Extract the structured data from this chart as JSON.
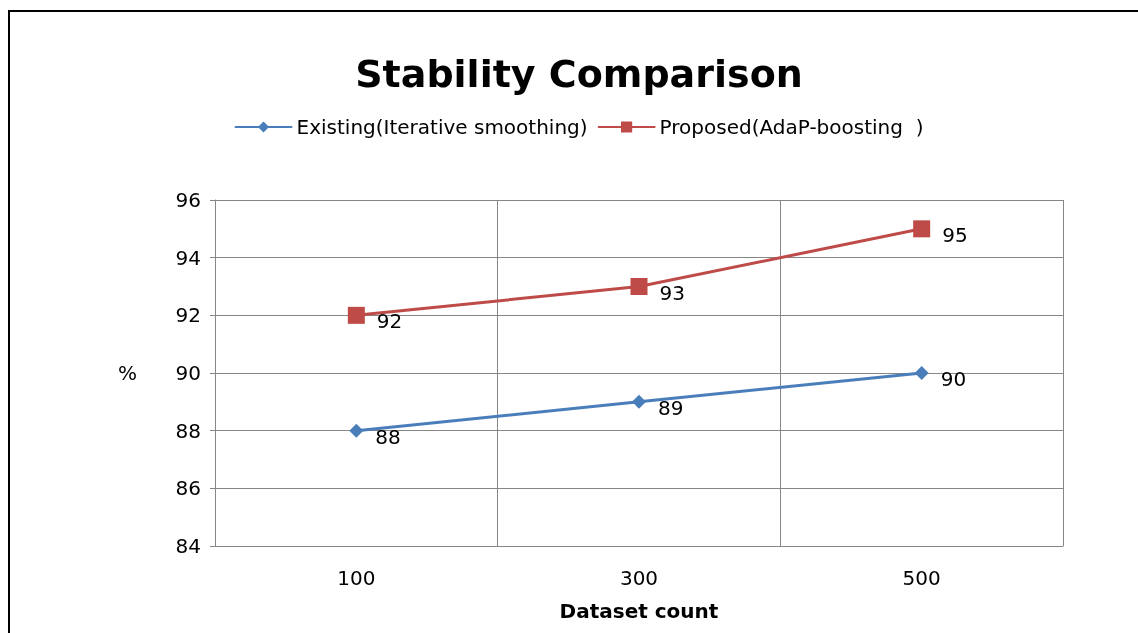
{
  "chart_data": {
    "type": "line",
    "title": "Stability Comparison",
    "xlabel": "Dataset count",
    "ylabel": "%",
    "categories": [
      "100",
      "300",
      "500"
    ],
    "series": [
      {
        "name": "Existing(Iterative smoothing)",
        "color": "#4a7ebb",
        "marker": "diamond",
        "values": [
          88,
          89,
          90
        ]
      },
      {
        "name": "Proposed(AdaP-boosting  )",
        "color": "#be4b48",
        "marker": "square",
        "values": [
          92,
          93,
          95
        ]
      }
    ],
    "ylim": [
      84,
      96
    ],
    "yticks": [
      84,
      86,
      88,
      90,
      92,
      94,
      96
    ],
    "grid": true,
    "legend": "top",
    "data_labels": true
  }
}
